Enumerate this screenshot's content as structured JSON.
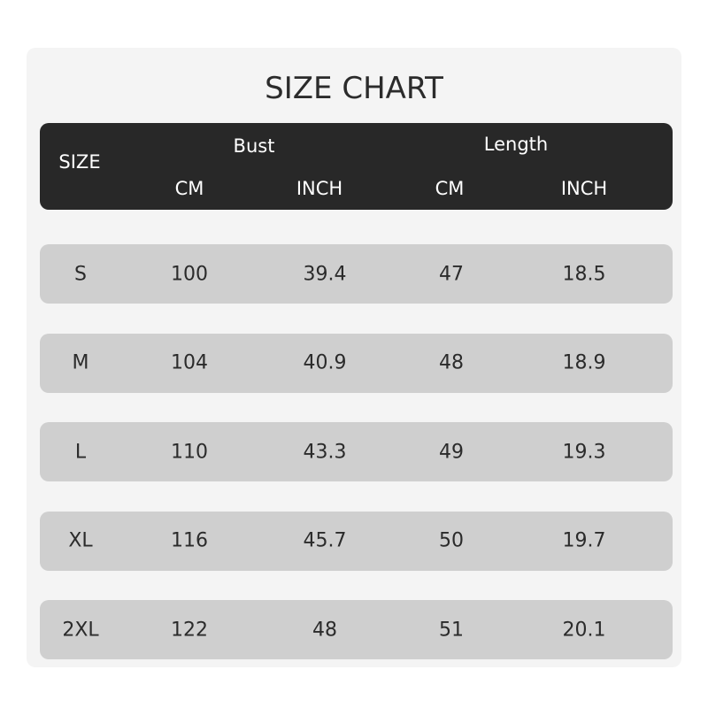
{
  "chart_data": {
    "type": "table",
    "title": "SIZE CHART",
    "header": {
      "size": "SIZE",
      "bust": "Bust",
      "length": "Length",
      "cm": "CM",
      "inch": "INCH"
    },
    "rows": [
      [
        "S",
        "100",
        "39.4",
        "47",
        "18.5"
      ],
      [
        "M",
        "104",
        "40.9",
        "48",
        "18.9"
      ],
      [
        "L",
        "110",
        "43.3",
        "49",
        "19.3"
      ],
      [
        "XL",
        "116",
        "45.7",
        "50",
        "19.7"
      ],
      [
        "2XL",
        "122",
        "48",
        "51",
        "20.1"
      ]
    ]
  }
}
